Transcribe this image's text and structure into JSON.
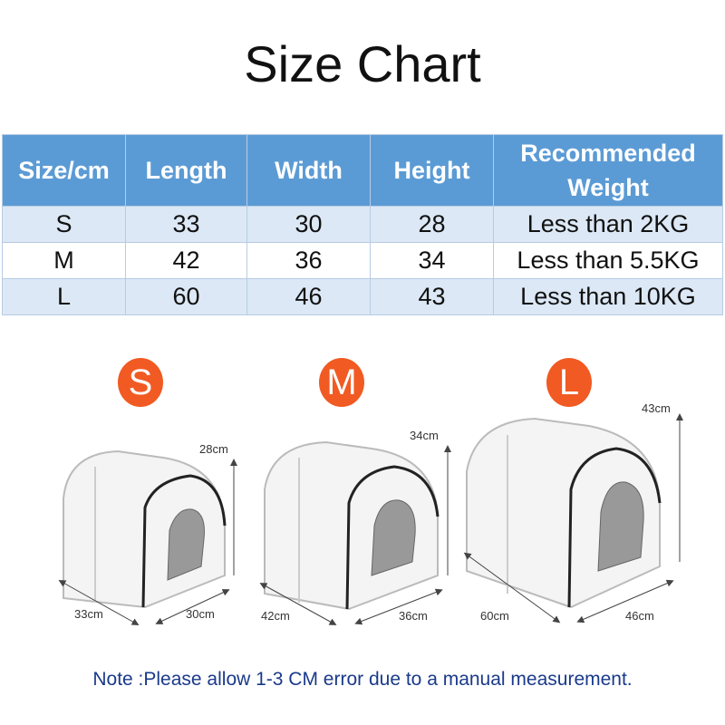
{
  "title": "Size Chart",
  "table": {
    "headers": [
      "Size/cm",
      "Length",
      "Width",
      "Height",
      "Recommended Weight"
    ],
    "rows": [
      [
        "S",
        "33",
        "30",
        "28",
        "Less than 2KG"
      ],
      [
        "M",
        "42",
        "36",
        "34",
        "Less than 5.5KG"
      ],
      [
        "L",
        "60",
        "46",
        "43",
        "Less than 10KG"
      ]
    ]
  },
  "products": [
    {
      "badge": "S",
      "length": "33cm",
      "width": "30cm",
      "height": "28cm"
    },
    {
      "badge": "M",
      "length": "42cm",
      "width": "36cm",
      "height": "34cm"
    },
    {
      "badge": "L",
      "length": "60cm",
      "width": "46cm",
      "height": "43cm"
    }
  ],
  "colors": {
    "header": "#5b9bd5",
    "row_alt": "#dce8f5",
    "badge": "#f15a22",
    "note": "#1a3a8a"
  },
  "note": "Note :Please allow 1-3 CM error due to a manual measurement."
}
